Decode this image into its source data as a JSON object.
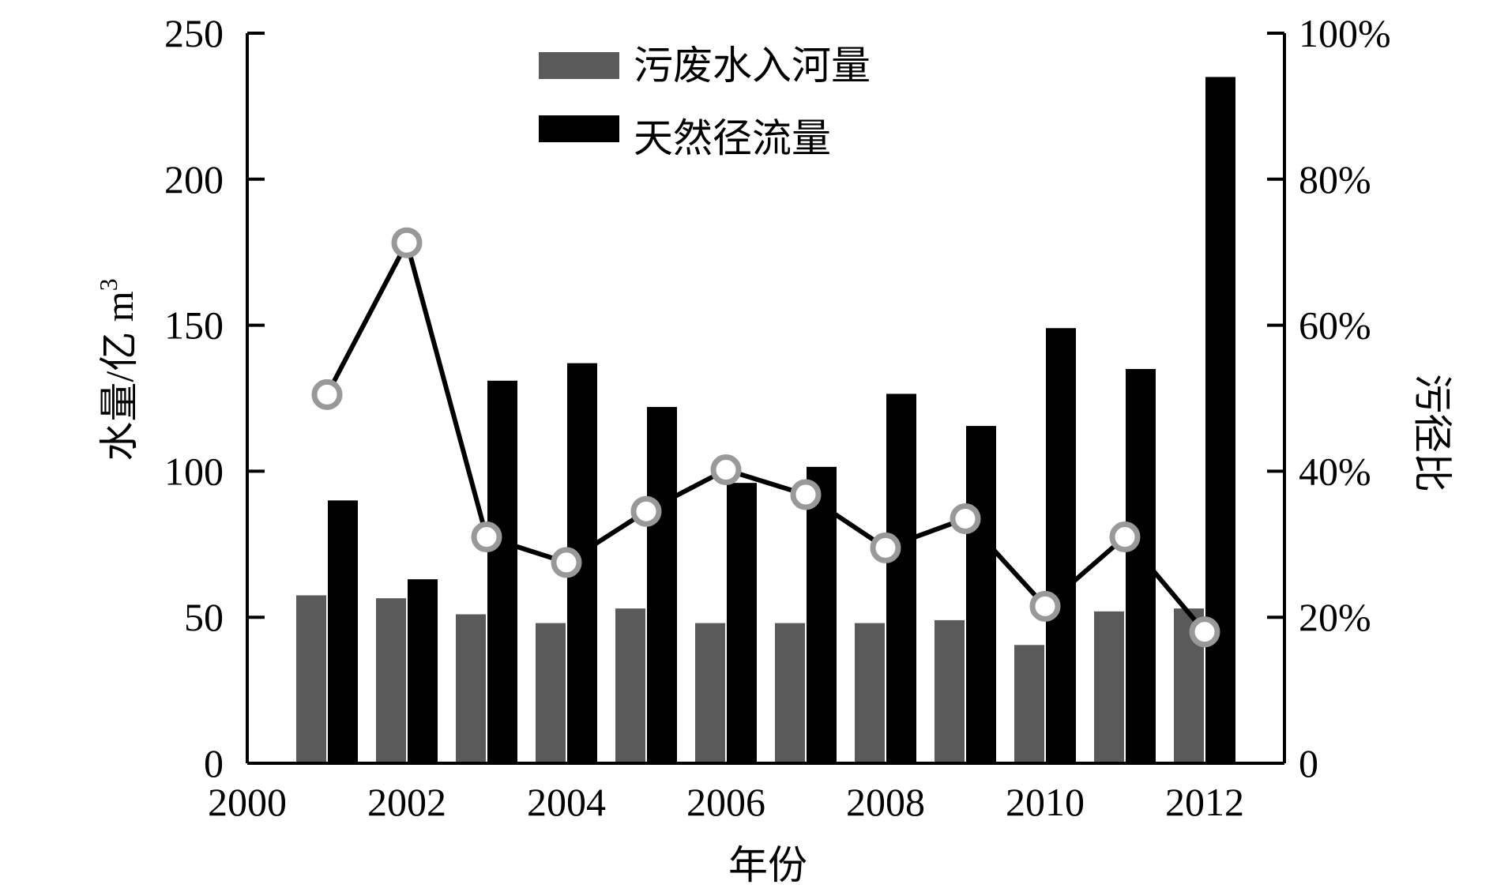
{
  "chart_data": {
    "type": "bar",
    "xlabel": "年份",
    "ylabel": "水量/亿 m³",
    "ylabel_main": "水量/亿 m",
    "ylabel_sup": "3",
    "y2label": "污径比",
    "xlim": [
      2000,
      2013
    ],
    "ylim": [
      0,
      250
    ],
    "y2lim": [
      0,
      1
    ],
    "x_ticks": [
      2000,
      2002,
      2004,
      2006,
      2008,
      2010,
      2012
    ],
    "y_ticks": [
      0,
      50,
      100,
      150,
      200,
      250
    ],
    "y2_ticks": [
      "0",
      "20%",
      "40%",
      "60%",
      "80%",
      "100%"
    ],
    "x": [
      2001,
      2002,
      2003,
      2004,
      2005,
      2006,
      2007,
      2008,
      2009,
      2010,
      2011,
      2012
    ],
    "series": [
      {
        "name": "污废水入河量",
        "kind": "bar",
        "color": "#5a5a5a",
        "values": [
          57.5,
          56.5,
          51,
          48,
          53,
          48,
          48,
          48,
          49,
          40.5,
          52,
          53
        ]
      },
      {
        "name": "天然径流量",
        "kind": "bar",
        "color": "#000000",
        "values": [
          90,
          63,
          131,
          137,
          122,
          96,
          101.5,
          126.5,
          115.5,
          149,
          135,
          235
        ]
      },
      {
        "name": "",
        "kind": "line",
        "axis": "right",
        "color": "#000000",
        "marker_color": "#999999",
        "values": [
          0.505,
          0.713,
          0.31,
          0.275,
          0.345,
          0.402,
          0.368,
          0.295,
          0.335,
          0.215,
          0.31,
          0.18
        ]
      }
    ],
    "legend_position": "top-center",
    "grid": false
  }
}
